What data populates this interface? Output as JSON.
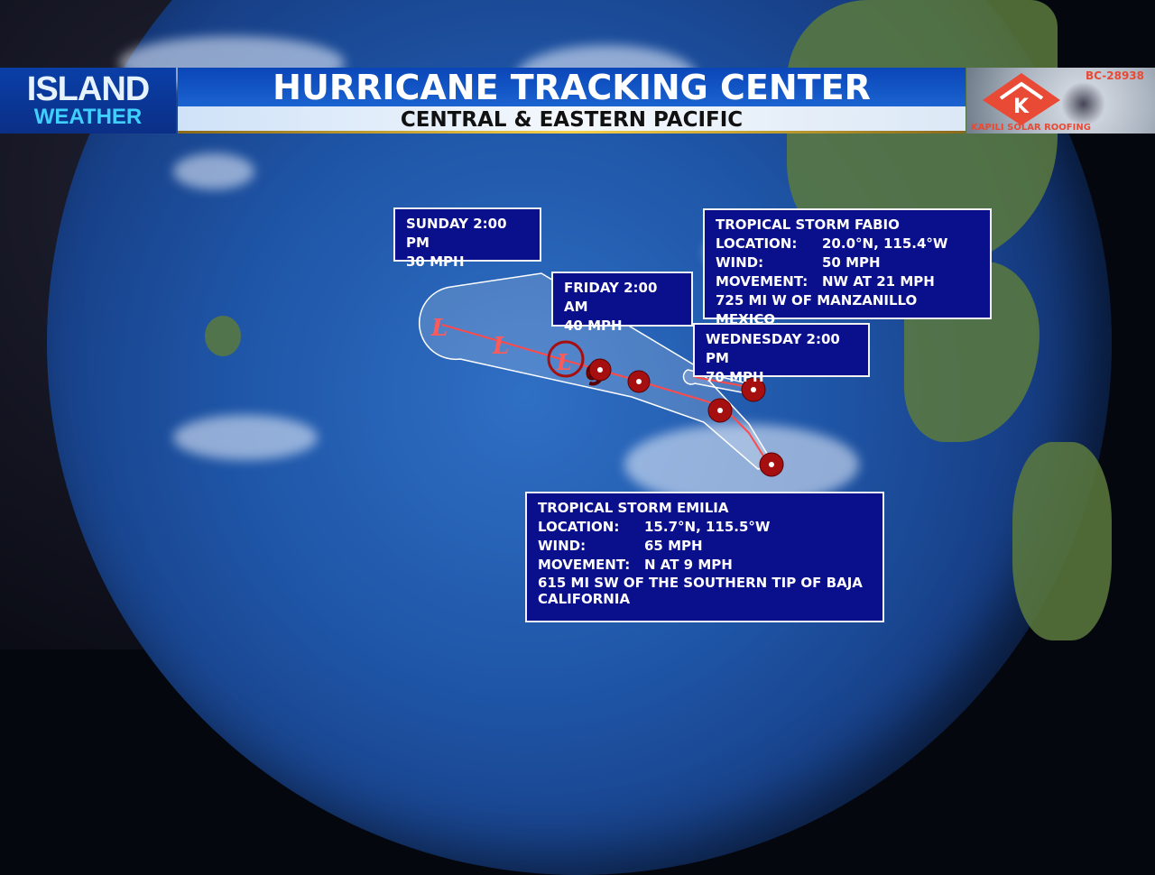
{
  "header": {
    "logo_top": "ISLAND",
    "logo_bottom": "WEATHER",
    "title": "HURRICANE TRACKING CENTER",
    "subtitle": "CENTRAL & EASTERN PACIFIC"
  },
  "sponsor": {
    "license": "BC-28938",
    "name": "KAPILI SOLAR ROOFING",
    "logo_letter": "K",
    "brand_color": "#e84a35"
  },
  "forecast_points": [
    {
      "time": "SUNDAY 2:00 PM",
      "wind": "30 MPH"
    },
    {
      "time": "FRIDAY 2:00 AM",
      "wind": "40 MPH"
    },
    {
      "time": "WEDNESDAY 2:00 PM",
      "wind": "70 MPH"
    }
  ],
  "storms": [
    {
      "title": "TROPICAL STORM FABIO",
      "rows": [
        {
          "k": "LOCATION:",
          "v": "20.0°N, 115.4°W"
        },
        {
          "k": "WIND:",
          "v": "50 MPH"
        },
        {
          "k": "MOVEMENT:",
          "v": "NW AT 21 MPH"
        }
      ],
      "note": "725 MI W OF MANZANILLO MEXICO"
    },
    {
      "title": "TROPICAL STORM EMILIA",
      "rows": [
        {
          "k": "LOCATION:",
          "v": "15.7°N, 115.5°W"
        },
        {
          "k": "WIND:",
          "v": "65 MPH"
        },
        {
          "k": "MOVEMENT:",
          "v": "N AT 9 MPH"
        }
      ],
      "note": "615 MI SW OF THE SOUTHERN TIP OF BAJA CALIFORNIA"
    }
  ],
  "track": {
    "low_symbol": "L",
    "cone_color": "#ffffff",
    "track_color": "#ff4a4a",
    "symbol_color": "#a50f0f"
  }
}
